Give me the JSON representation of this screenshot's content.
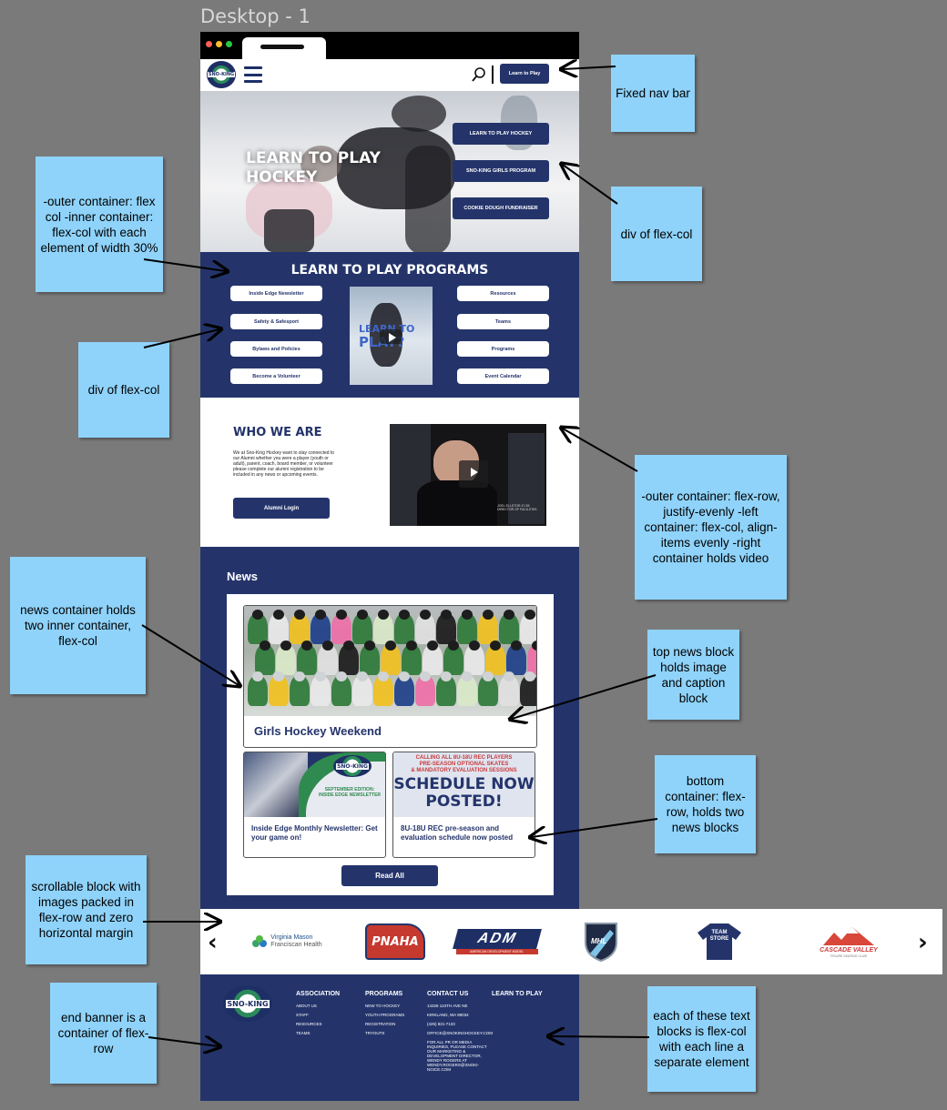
{
  "frame_title": "Desktop - 1",
  "nav": {
    "logo_text": "SNO-KING",
    "learn_button": "Learn to Play"
  },
  "hero": {
    "title_line1": "LEARN TO PLAY",
    "title_line2": "HOCKEY",
    "buttons": [
      "LEARN TO PLAY HOCKEY",
      "SNO-KING GIRLS PROGRAM",
      "COOKIE DOUGH FUNDRAISER"
    ]
  },
  "programs": {
    "title": "LEARN TO PLAY PROGRAMS",
    "left_links": [
      "Inside Edge Newsletter",
      "Safety & Safesport",
      "Bylaws and Policies",
      "Become a Volunteer"
    ],
    "right_links": [
      "Resources",
      "Teams",
      "Programs",
      "Event Calendar"
    ],
    "video_text_line1": "LEARN TO",
    "video_text_line2": "PLAY?"
  },
  "who": {
    "title": "WHO WE ARE",
    "body": "We at Sno-King Hockey want to stay connected to our Alumni whether you were a player (youth or adult), parent, coach, board member, or volunteer please complete our alumni registration to be included in any news or upcoming events.",
    "button": "Alumni Login",
    "video_caption": "JOEL ELLSTOR 47-55 DIRECTOR OF FACILITIES"
  },
  "news": {
    "title": "News",
    "top_caption": "Girls Hockey Weekend",
    "small": [
      {
        "caption": "Inside Edge Monthly Newsletter: Get your game on!",
        "img_text": "SEPTEMBER EDITION: INSIDE EDGE NEWSLETTER"
      },
      {
        "caption": "8U-18U REC pre-season and evaluation schedule now posted",
        "img_line1": "CALLING ALL 8U-18U REC PLAYERS",
        "img_line2": "PRE-SEASON OPTIONAL SKATES",
        "img_line3": "& MANDATORY EVALUATION SESSIONS",
        "img_line4": "SCHEDULE NOW",
        "img_line5": "POSTED!"
      }
    ],
    "read_all": "Read All"
  },
  "sponsors": {
    "prev": "‹",
    "next": "›",
    "items": [
      {
        "line1": "Virginia Mason",
        "line2": "Franciscan Health"
      },
      {
        "line1": "PNAHA"
      },
      {
        "line1": "ADM",
        "line2": "AMERICAN DEVELOPMENT MODEL"
      },
      {
        "line1": "MHL"
      },
      {
        "line1": "TEAM",
        "line2": "STORE"
      },
      {
        "line1": "CASCADE VALLEY",
        "line2": "FIGURE SKATING CLUB"
      }
    ]
  },
  "footer": {
    "logo_text": "SNO-KING",
    "columns": [
      {
        "head": "ASSOCIATION",
        "lines": [
          "ABOUT US",
          "STAFF",
          "RESOURCES",
          "TEAMS"
        ]
      },
      {
        "head": "PROGRAMS",
        "lines": [
          "NEW TO HOCKEY",
          "YOUTH PROGRAMS",
          "REGISTRATION",
          "TRYOUTS"
        ]
      },
      {
        "head": "CONTACT US",
        "lines": [
          "14326 124TH AVE NE",
          "KIRKLAND, WA 98034",
          "(425) 821-7133",
          "OFFICE@SNOKINGHOCKEY.COM",
          "FOR ALL PR OR MEDIA INQUIRIES, PLEASE CONTACT OUR MARKETING & DEVELOPMENT DIRECTOR, WENDY ROGERS AT WENDY.ROGERS@SNOKI-NGICE.COM"
        ]
      },
      {
        "head": "LEARN TO PLAY",
        "lines": []
      }
    ]
  },
  "notes": {
    "fixed_nav": "Fixed nav bar",
    "outer_flex": "-outer container: flex col -inner container: flex-col with each element of width 30%",
    "hero_div": "div of flex-col",
    "prog_div": "div of flex-col",
    "who_layout": "-outer container: flex-row, justify-evenly -left container: flex-col, align-items evenly -right container holds video",
    "news_container": "news container holds two inner container, flex-col",
    "top_news": "top news block holds image and caption block",
    "bottom_container": "bottom container: flex-row, holds two news blocks",
    "scroll_block": "scrollable block with images packed in flex-row and zero horizontal margin",
    "end_banner": "end banner is a container of flex-row",
    "text_blocks": "each of these text blocks is flex-col with each line a separate element"
  },
  "colors": {
    "navy": "#24346b",
    "note": "#8fd3fa",
    "canvas": "#7a7a7a"
  }
}
